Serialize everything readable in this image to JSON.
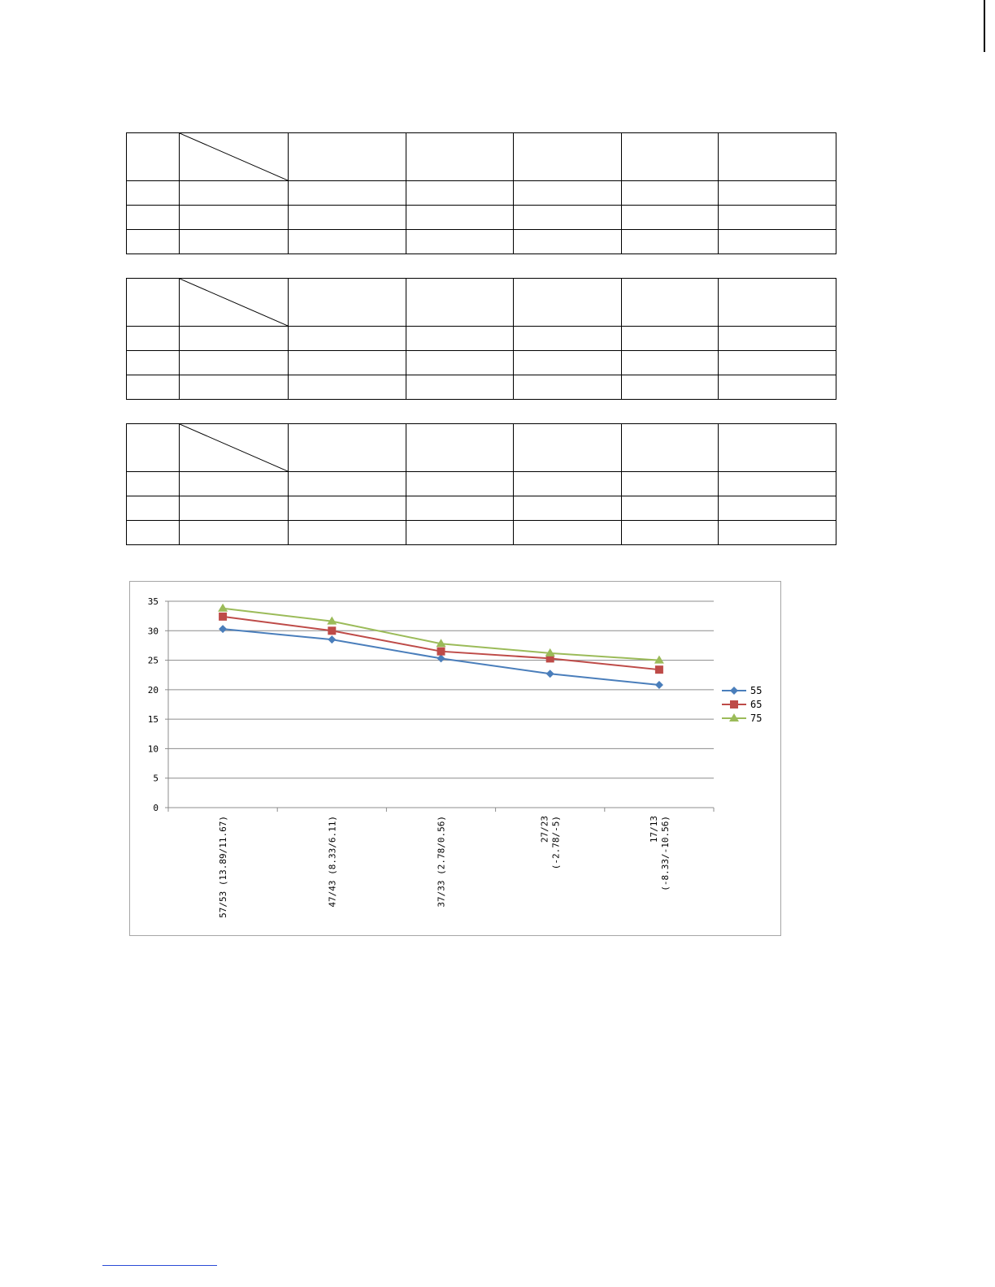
{
  "tables": [
    {
      "columns": [
        "",
        "",
        "",
        "",
        "",
        "",
        ""
      ],
      "rows": [
        [
          "",
          "",
          "",
          "",
          "",
          "",
          ""
        ],
        [
          "",
          "",
          "",
          "",
          "",
          "",
          ""
        ],
        [
          "",
          "",
          "",
          "",
          "",
          "",
          ""
        ]
      ]
    },
    {
      "columns": [
        "",
        "",
        "",
        "",
        "",
        "",
        ""
      ],
      "rows": [
        [
          "",
          "",
          "",
          "",
          "",
          "",
          ""
        ],
        [
          "",
          "",
          "",
          "",
          "",
          "",
          ""
        ],
        [
          "",
          "",
          "",
          "",
          "",
          "",
          ""
        ]
      ]
    },
    {
      "columns": [
        "",
        "",
        "",
        "",
        "",
        "",
        ""
      ],
      "rows": [
        [
          "",
          "",
          "",
          "",
          "",
          "",
          ""
        ],
        [
          "",
          "",
          "",
          "",
          "",
          "",
          ""
        ],
        [
          "",
          "",
          "",
          "",
          "",
          "",
          ""
        ]
      ]
    }
  ],
  "chart_data": {
    "type": "line",
    "categories": [
      [
        "57/53 (13.89/11.67)"
      ],
      [
        "47/43 (8.33/6.11)"
      ],
      [
        "37/33 (2.78/0.56)"
      ],
      [
        "27/23",
        "(-2.78/-5)"
      ],
      [
        "17/13",
        "(-8.33/-10.56)"
      ]
    ],
    "series": [
      {
        "name": "55",
        "values": [
          30.3,
          28.5,
          25.3,
          22.7,
          20.8
        ],
        "color": "#4a7ebb",
        "marker": "diamond"
      },
      {
        "name": "65",
        "values": [
          32.4,
          30.0,
          26.5,
          25.3,
          23.4
        ],
        "color": "#be4b48",
        "marker": "square"
      },
      {
        "name": "75",
        "values": [
          33.8,
          31.6,
          27.8,
          26.2,
          25.0
        ],
        "color": "#9bbb59",
        "marker": "triangle"
      }
    ],
    "ylim": [
      0,
      35
    ],
    "yticks": [
      0,
      5,
      10,
      15,
      20,
      25,
      30,
      35
    ],
    "grid": true,
    "legend": "right"
  }
}
